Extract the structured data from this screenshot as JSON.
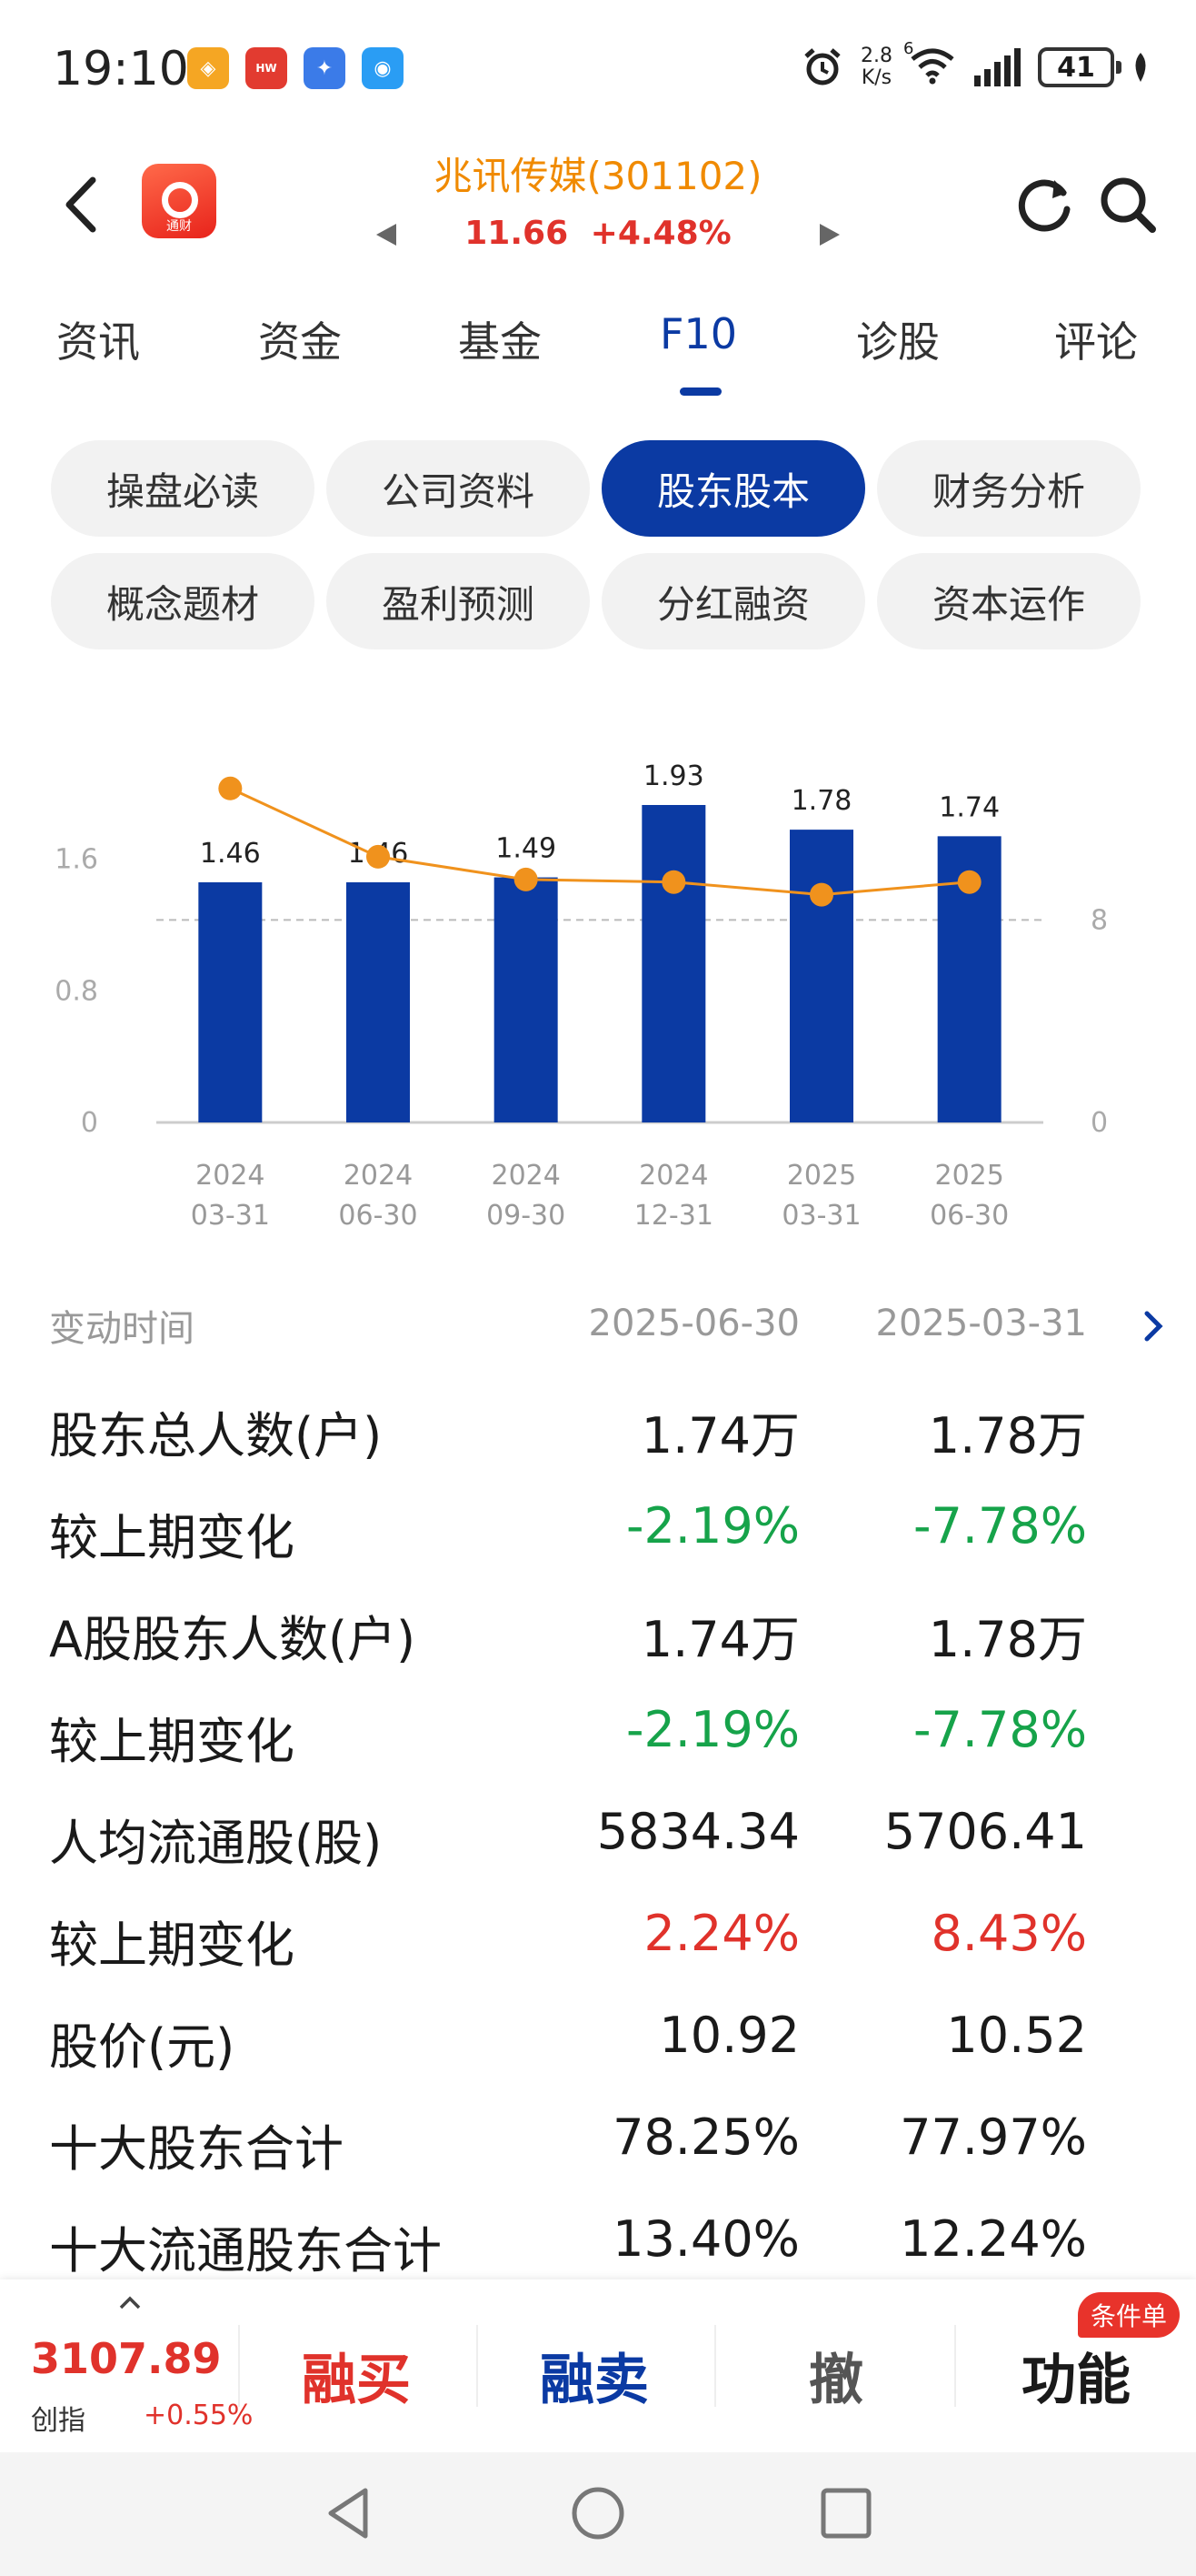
{
  "status_bar": {
    "time": "19:10",
    "net_speed_value": "2.8",
    "net_speed_unit": "K/s",
    "network_badge": "6",
    "battery": "41"
  },
  "header": {
    "stock_name": "兆讯传媒(301102)",
    "price": "11.66",
    "change_pct": "+4.48%",
    "logo_text": "通财"
  },
  "main_tabs": [
    "资讯",
    "资金",
    "基金",
    "F10",
    "诊股",
    "评论"
  ],
  "sub_tabs": [
    "操盘必读",
    "公司资料",
    "股东股本",
    "财务分析",
    "概念题材",
    "盈利预测",
    "分红融资",
    "资本运作"
  ],
  "chart_data": {
    "type": "bar",
    "categories": [
      "2024\n03-31",
      "2024\n06-30",
      "2024\n09-30",
      "2024\n12-31",
      "2025\n03-31",
      "2025\n06-30"
    ],
    "category_years": [
      "2024",
      "2024",
      "2024",
      "2024",
      "2025",
      "2025"
    ],
    "category_dates": [
      "03-31",
      "06-30",
      "09-30",
      "12-31",
      "03-31",
      "06-30"
    ],
    "bar_color": "#0b3aa3",
    "line_color": "#f0921d",
    "series": [
      {
        "type": "bar",
        "axis": "left",
        "values": [
          1.46,
          1.46,
          1.49,
          1.93,
          1.78,
          1.74
        ],
        "labels": [
          "1.46",
          "1.46",
          "1.49",
          "1.93",
          "1.78",
          "1.74"
        ]
      },
      {
        "type": "line",
        "axis": "right",
        "values": [
          13.2,
          10.5,
          9.6,
          9.5,
          9.0,
          9.5
        ]
      }
    ],
    "left_axis": {
      "ticks": [
        "0",
        "0.8",
        "1.6"
      ],
      "ylim": [
        0,
        2.4
      ]
    },
    "right_axis": {
      "ticks": [
        "0",
        "8"
      ],
      "ylim": [
        0,
        15.6
      ]
    },
    "reference_line": {
      "axis": "right",
      "value": 8,
      "style": "dashed"
    }
  },
  "table": {
    "header_label": "变动时间",
    "columns": [
      "2025-06-30",
      "2025-03-31"
    ],
    "rows": [
      {
        "label": "股东总人数(户)",
        "values": [
          "1.74万",
          "1.78万"
        ],
        "color": ""
      },
      {
        "label": "较上期变化",
        "values": [
          "-2.19%",
          "-7.78%"
        ],
        "color": "green"
      },
      {
        "label": "A股股东人数(户)",
        "values": [
          "1.74万",
          "1.78万"
        ],
        "color": ""
      },
      {
        "label": "较上期变化",
        "values": [
          "-2.19%",
          "-7.78%"
        ],
        "color": "green"
      },
      {
        "label": "人均流通股(股)",
        "values": [
          "5834.34",
          "5706.41"
        ],
        "color": ""
      },
      {
        "label": "较上期变化",
        "values": [
          "2.24%",
          "8.43%"
        ],
        "color": "red"
      },
      {
        "label": "股价(元)",
        "values": [
          "10.92",
          "10.52"
        ],
        "color": ""
      },
      {
        "label": "十大股东合计",
        "values": [
          "78.25%",
          "77.97%"
        ],
        "color": ""
      },
      {
        "label": "十大流通股东合计",
        "values": [
          "13.40%",
          "12.24%"
        ],
        "color": ""
      }
    ]
  },
  "trade_bar": {
    "index_value": "3107.89",
    "index_name": "创指",
    "index_change": "+0.55%",
    "buttons": [
      "融买",
      "融卖",
      "撤",
      "功能"
    ],
    "badge": "条件单"
  }
}
